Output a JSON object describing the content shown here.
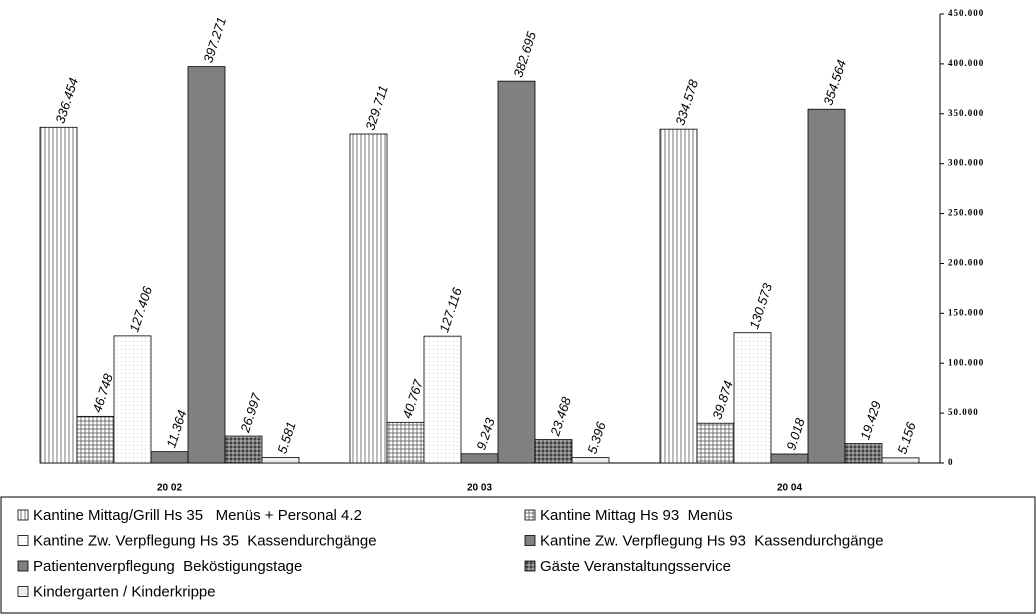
{
  "chart_data": {
    "type": "bar",
    "categories": [
      "20 02",
      "20 03",
      "20 04"
    ],
    "series": [
      {
        "name": "Kantine Mittag/Grill Hs 35   Menüs + Personal 4.2",
        "color": "#ffffff",
        "pattern": "vertical",
        "values": [
          336454,
          329711,
          334578
        ],
        "value_labels": [
          "336.454",
          "329.711",
          "334.578"
        ]
      },
      {
        "name": "Kantine Mittag Hs 93  Menüs",
        "color": "#ffffff",
        "pattern": "grid",
        "values": [
          46748,
          40767,
          39874
        ],
        "value_labels": [
          "46.748",
          "40.767",
          "39.874"
        ]
      },
      {
        "name": "Kantine Zw. Verpflegung Hs 35  Kassendurchgänge",
        "color": "#ffffff",
        "pattern": "dots",
        "values": [
          127406,
          127116,
          130573
        ],
        "value_labels": [
          "127.406",
          "127.116",
          "130.573"
        ]
      },
      {
        "name": "Kantine Zw. Verpflegung Hs 93  Kassendurchgänge",
        "color": "#808080",
        "pattern": "solid",
        "values": [
          11364,
          9243,
          9018
        ],
        "value_labels": [
          "11.364",
          "9.243",
          "9.018"
        ]
      },
      {
        "name": "Patientenverpflegung  Beköstigungstage",
        "color": "#808080",
        "pattern": "solid",
        "values": [
          397271,
          382695,
          354564
        ],
        "value_labels": [
          "397.271",
          "382.695",
          "354.564"
        ]
      },
      {
        "name": "Gäste Veranstaltungsservice",
        "color": "#404040",
        "pattern": "dense",
        "values": [
          26997,
          23468,
          19429
        ],
        "value_labels": [
          "26.997",
          "23.468",
          "19.429"
        ]
      },
      {
        "name": "Kindergarten / Kinderkrippe",
        "color": "#f0f0f0",
        "pattern": "dots",
        "values": [
          5581,
          5396,
          5156
        ],
        "value_labels": [
          "5.581",
          "5.396",
          "5.156"
        ]
      }
    ],
    "ylim": [
      0,
      450000
    ],
    "yticks": [
      0,
      {
        "value": 50000,
        "label": "50.000"
      },
      {
        "value": 100000,
        "label": "100.000"
      },
      {
        "value": 150000,
        "label": "150.000"
      },
      {
        "value": 200000,
        "label": "200.000"
      },
      {
        "value": 250000,
        "label": "250.000"
      },
      {
        "value": 300000,
        "label": "300.000"
      },
      {
        "value": 350000,
        "label": "350.000"
      },
      {
        "value": 400000,
        "label": "400.000"
      },
      {
        "value": 450000,
        "label": "450.000"
      }
    ]
  }
}
